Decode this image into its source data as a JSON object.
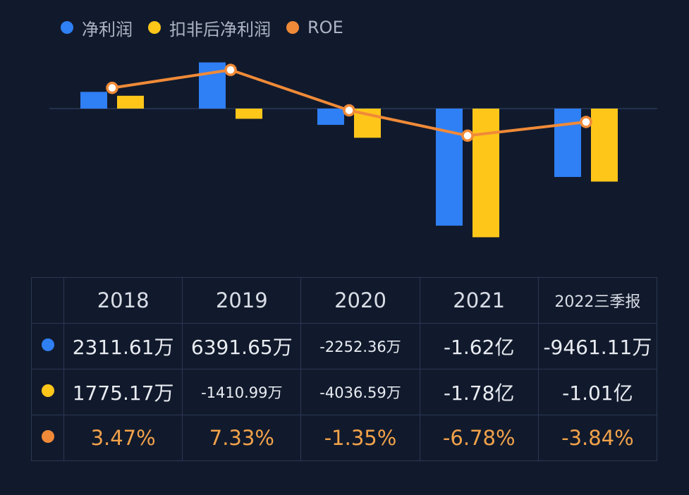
{
  "colors": {
    "net_profit": "#2f7ff5",
    "deducted_profit": "#ffc61a",
    "roe": "#f08a38",
    "background": "#111a2c",
    "grid": "#2a3754",
    "roe_text": "#f2a24a"
  },
  "legend": [
    {
      "label": "净利润",
      "color": "#2f7ff5"
    },
    {
      "label": "扣非后净利润",
      "color": "#ffc61a"
    },
    {
      "label": "ROE",
      "color": "#f08a38"
    }
  ],
  "table": {
    "headers": [
      "2018",
      "2019",
      "2020",
      "2021",
      "2022三季报"
    ],
    "rows": [
      {
        "color": "#2f7ff5",
        "values": [
          "2311.61万",
          "6391.65万",
          "-2252.36万",
          "-1.62亿",
          "-9461.11万"
        ]
      },
      {
        "color": "#ffc61a",
        "values": [
          "1775.17万",
          "-1410.99万",
          "-4036.59万",
          "-1.78亿",
          "-1.01亿"
        ]
      },
      {
        "color": "#f08a38",
        "values": [
          "3.47%",
          "7.33%",
          "-1.35%",
          "-6.78%",
          "-3.84%"
        ]
      }
    ]
  },
  "chart_data": {
    "type": "bar",
    "categories": [
      "2018",
      "2019",
      "2020",
      "2021",
      "2022三季报"
    ],
    "series": [
      {
        "name": "净利润",
        "type": "bar",
        "unit": "万",
        "values": [
          2311.61,
          6391.65,
          -2252.36,
          -16200,
          -9461.11
        ]
      },
      {
        "name": "扣非后净利润",
        "type": "bar",
        "unit": "万",
        "values": [
          1775.17,
          -1410.99,
          -4036.59,
          -17800,
          -10100
        ]
      },
      {
        "name": "ROE",
        "type": "line",
        "unit": "%",
        "values": [
          3.47,
          7.33,
          -1.35,
          -6.78,
          -3.84
        ]
      }
    ],
    "title": "",
    "xlabel": "",
    "ylabel": "",
    "legend_position": "top-left",
    "zero_line": true,
    "grid": false
  }
}
